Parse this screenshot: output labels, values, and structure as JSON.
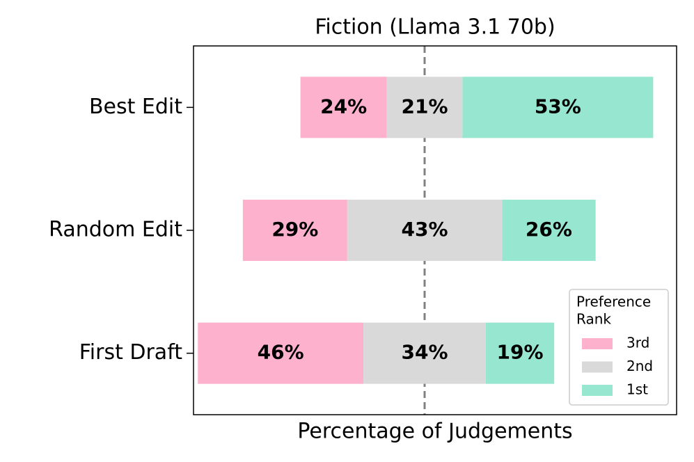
{
  "chart_data": {
    "type": "diverging_bar",
    "title": "Fiction (Llama 3.1 70b)",
    "xlabel": "Percentage of Judgements",
    "categories": [
      "Best Edit",
      "Random Edit",
      "First Draft"
    ],
    "series": [
      {
        "name": "3rd",
        "color": "#fdb1cd",
        "values": [
          24,
          29,
          46
        ],
        "value_labels": [
          "24%",
          "29%",
          "46%"
        ]
      },
      {
        "name": "2nd",
        "color": "#d9d9d9",
        "values": [
          21,
          43,
          34
        ],
        "value_labels": [
          "21%",
          "43%",
          "34%"
        ]
      },
      {
        "name": "1st",
        "color": "#97e6cf",
        "values": [
          53,
          26,
          19
        ],
        "value_labels": [
          "53%",
          "26%",
          "19%"
        ]
      }
    ],
    "xlim": [
      -64.2,
      70.0
    ],
    "legend_title": [
      "Preference",
      "Rank"
    ],
    "legend": "lower right"
  }
}
